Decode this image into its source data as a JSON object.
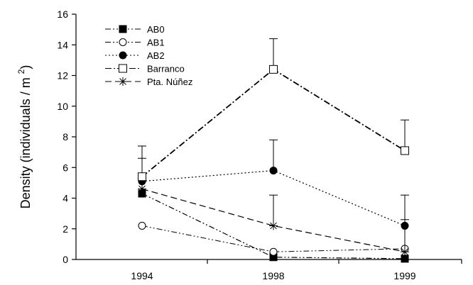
{
  "chart_data": {
    "type": "line",
    "title": "",
    "xlabel": "",
    "ylabel": "Density (individuals / m ",
    "ylabel_superscript": "2",
    "ylabel_close": ")",
    "categories": [
      "1994",
      "1998",
      "1999"
    ],
    "ylim": [
      0,
      16
    ],
    "yticks": [
      0,
      2,
      4,
      6,
      8,
      10,
      12,
      14,
      16
    ],
    "grid": false,
    "legend_position": "top-left",
    "series": [
      {
        "name": "AB0",
        "marker": "filled-square",
        "values": [
          4.3,
          0.15,
          0.05
        ],
        "errors": [
          2.3,
          0.0,
          0.0
        ]
      },
      {
        "name": "AB1",
        "marker": "open-circle",
        "values": [
          2.2,
          0.5,
          0.7
        ],
        "errors": [
          0.0,
          0.0,
          0.0
        ]
      },
      {
        "name": "AB2",
        "marker": "filled-circle",
        "values": [
          5.1,
          5.8,
          2.2
        ],
        "errors": [
          2.3,
          2.0,
          0.4
        ]
      },
      {
        "name": "Barranco",
        "marker": "open-square",
        "values": [
          5.4,
          12.4,
          7.1
        ],
        "errors": [
          2.0,
          2.0,
          2.0
        ]
      },
      {
        "name": "Pta. Núñez",
        "marker": "asterisk",
        "values": [
          4.6,
          2.2,
          0.5
        ],
        "errors": [
          0.0,
          2.0,
          3.7
        ]
      }
    ]
  }
}
